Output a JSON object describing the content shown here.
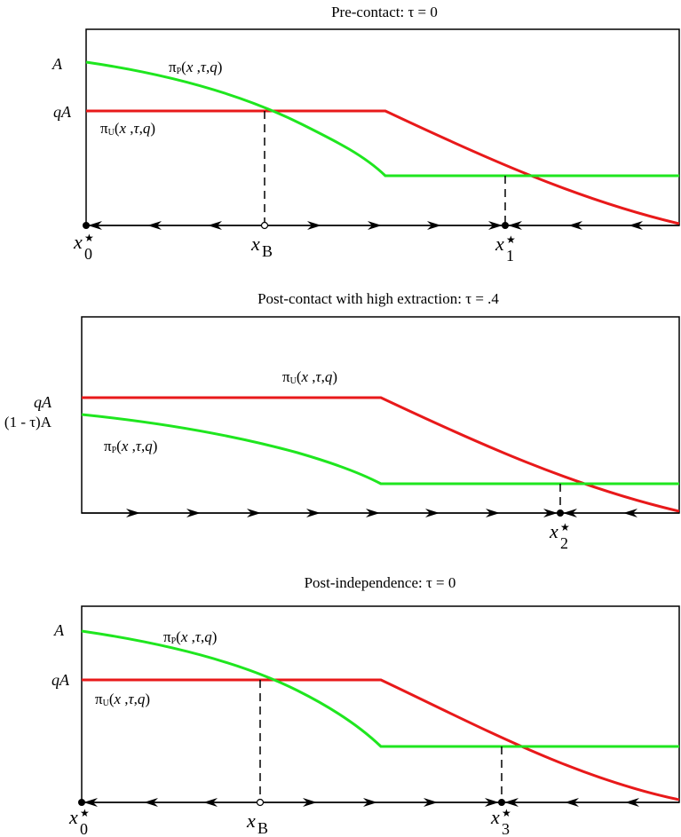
{
  "panels": [
    {
      "title": "Pre-contact: τ = 0",
      "y_labels": {
        "top": "A",
        "mid": "qA"
      },
      "curve_labels": {
        "pi_P": "πP(x ,τ,q)",
        "pi_U": "πU(x ,τ,q)"
      },
      "points": [
        {
          "base": "x",
          "sub": "0",
          "star": "★"
        },
        {
          "base": "x",
          "sub": "B",
          "star": ""
        },
        {
          "base": "x",
          "sub": "1",
          "star": "★"
        }
      ]
    },
    {
      "title": "Post-contact with high extraction: τ = .4",
      "y_labels": {
        "top": "qA",
        "mid": "(1 - τ)A"
      },
      "curve_labels": {
        "pi_P": "πP(x ,τ,q)",
        "pi_U": "πU(x ,τ,q)"
      },
      "points": [
        {
          "base": "x",
          "sub": "2",
          "star": "★"
        }
      ]
    },
    {
      "title": "Post-independence: τ = 0",
      "y_labels": {
        "top": "A",
        "mid": "qA"
      },
      "curve_labels": {
        "pi_P": "πP(x ,τ,q)",
        "pi_U": "πU(x ,τ,q)"
      },
      "points": [
        {
          "base": "x",
          "sub": "0",
          "star": "★"
        },
        {
          "base": "x",
          "sub": "B",
          "star": ""
        },
        {
          "base": "x",
          "sub": "3",
          "star": "★"
        }
      ]
    }
  ],
  "colors": {
    "pi_U": "#e8191a",
    "pi_P": "#1fe61f",
    "axis": "#000000"
  }
}
